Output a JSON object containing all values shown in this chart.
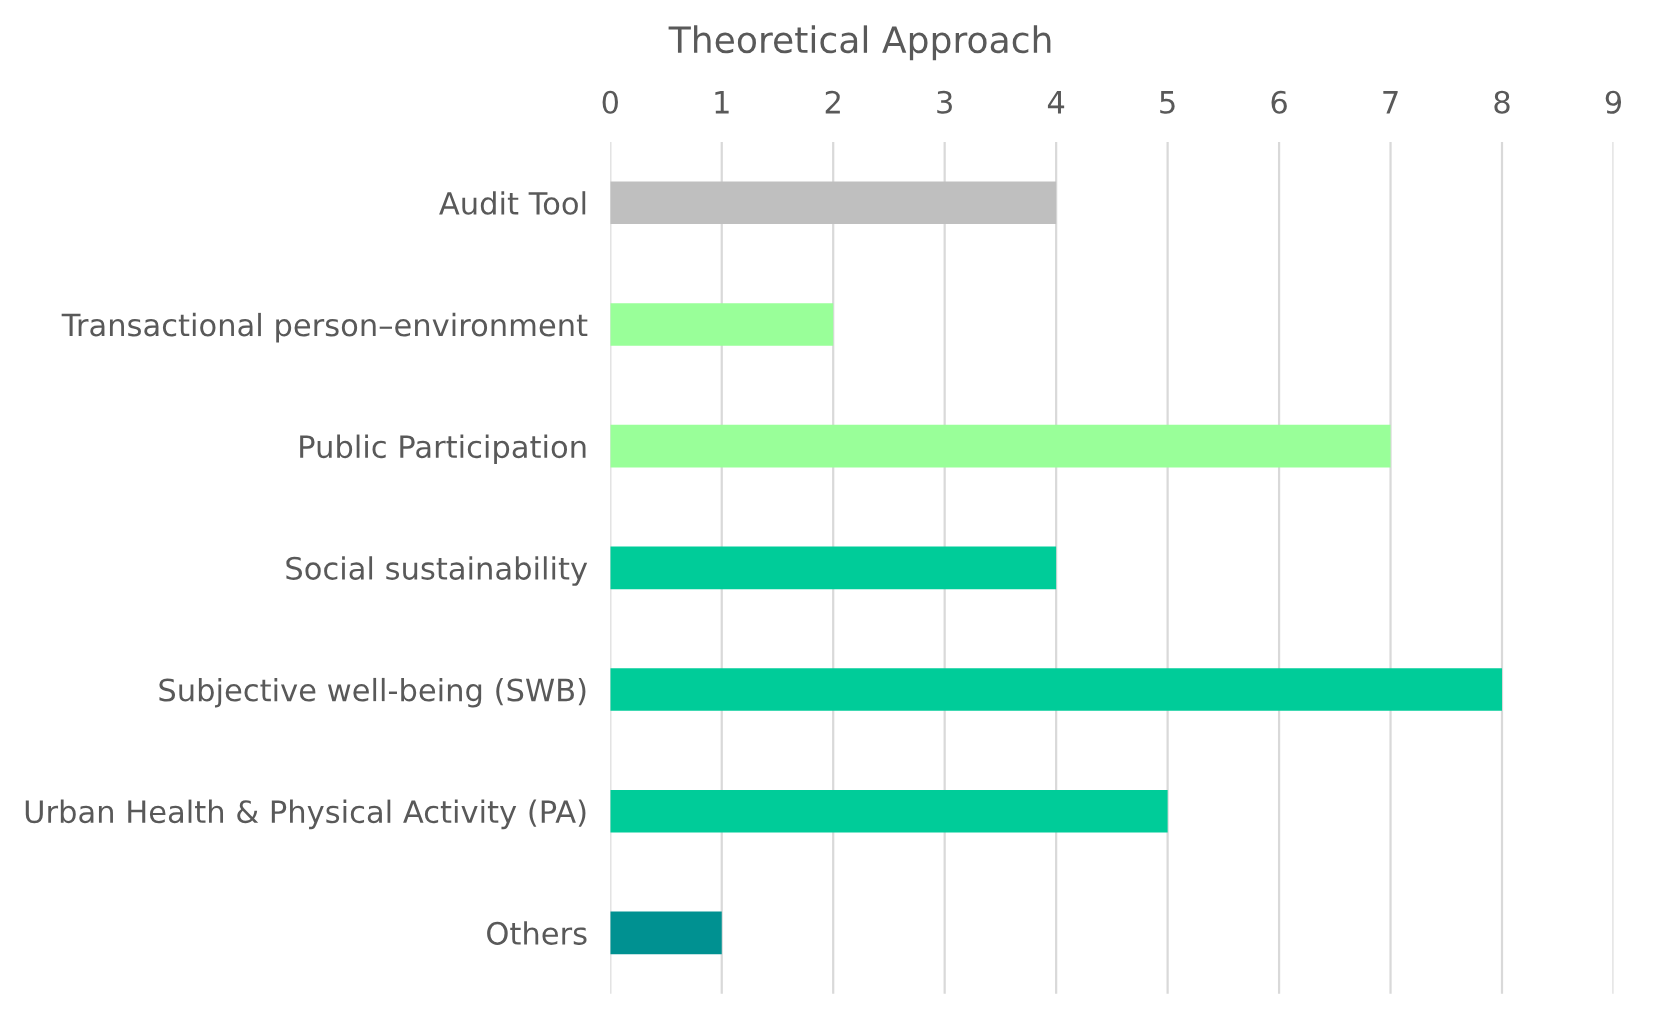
{
  "chart_data": {
    "type": "bar",
    "orientation": "horizontal",
    "title": "Theoretical Approach",
    "categories": [
      "Audit Tool",
      "Transactional person–environment",
      "Public Participation",
      "Social sustainability",
      "Subjective well-being (SWB)",
      "Urban Health & Physical Activity (PA)",
      "Others"
    ],
    "values": [
      4,
      2,
      7,
      4,
      8,
      5,
      1
    ],
    "colors": [
      "#bfbfbf",
      "#99ff99",
      "#99ff99",
      "#00cc99",
      "#00cc99",
      "#00cc99",
      "#009191"
    ],
    "xlim": [
      0,
      9
    ],
    "xticks": [
      0,
      1,
      2,
      3,
      4,
      5,
      6,
      7,
      8,
      9
    ],
    "grid": "x"
  }
}
